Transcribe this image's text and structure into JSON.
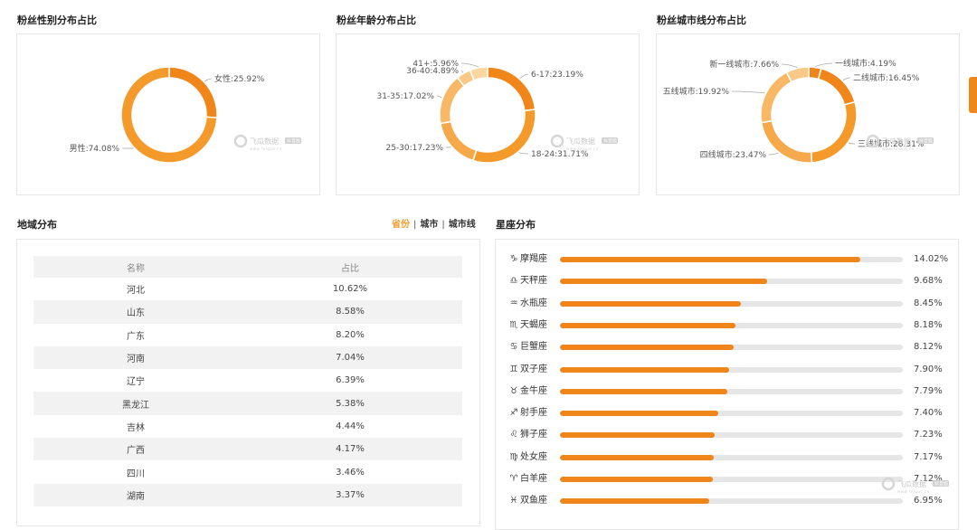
{
  "gender": {
    "title": "粉丝性别分布占比",
    "labels": [
      "女性:25.92%",
      "男性:74.08%"
    ]
  },
  "age": {
    "title": "粉丝年龄分布占比",
    "labels": [
      "6-17:23.19%",
      "18-24:31.71%",
      "25-30:17.23%",
      "31-35:17.02%",
      "36-40:4.89%",
      "41+:5.96%"
    ]
  },
  "city": {
    "title": "粉丝城市线分布占比",
    "labels": [
      "一线城市:4.19%",
      "二线城市:16.45%",
      "三线城市:28.31%",
      "四线城市:23.47%",
      "五线城市:19.92%",
      "新一线城市:7.66%"
    ]
  },
  "watermark": {
    "brand": "飞瓜数据",
    "badge": "抖音版",
    "url": "www.feigua.cn"
  },
  "region": {
    "title": "地域分布",
    "tabs": [
      "省份",
      "城市",
      "城市线"
    ],
    "active_tab": "省份",
    "tab_separator": "|",
    "columns": [
      "名称",
      "占比"
    ],
    "rows": [
      {
        "name": "河北",
        "pct": "10.62%"
      },
      {
        "name": "山东",
        "pct": "8.58%"
      },
      {
        "name": "广东",
        "pct": "8.20%"
      },
      {
        "name": "河南",
        "pct": "7.04%"
      },
      {
        "name": "辽宁",
        "pct": "6.39%"
      },
      {
        "name": "黑龙江",
        "pct": "5.38%"
      },
      {
        "name": "吉林",
        "pct": "4.44%"
      },
      {
        "name": "广西",
        "pct": "4.17%"
      },
      {
        "name": "四川",
        "pct": "3.46%"
      },
      {
        "name": "湖南",
        "pct": "3.37%"
      }
    ]
  },
  "zodiac": {
    "title": "星座分布",
    "icon_glyphs": [
      "♑",
      "♎",
      "♒",
      "♏",
      "♋",
      "♊",
      "♉",
      "♐",
      "♌",
      "♍",
      "♈",
      "♓"
    ],
    "names": [
      "摩羯座",
      "天秤座",
      "水瓶座",
      "天蝎座",
      "巨蟹座",
      "双子座",
      "金牛座",
      "射手座",
      "狮子座",
      "处女座",
      "白羊座",
      "双鱼座"
    ],
    "pct_labels": [
      "14.02%",
      "9.68%",
      "8.45%",
      "8.18%",
      "8.12%",
      "7.90%",
      "7.79%",
      "7.40%",
      "7.23%",
      "7.17%",
      "7.12%",
      "6.95%"
    ]
  },
  "colors": {
    "accent": "#f08519",
    "donut_palette": [
      "#f08519",
      "#f39a2b",
      "#f6a94a",
      "#f8b866",
      "#fbc987",
      "#fcd6a1"
    ],
    "track": "#e6e6e6"
  },
  "chart_data": [
    {
      "type": "pie",
      "title": "粉丝性别分布占比",
      "categories": [
        "女性",
        "男性"
      ],
      "values": [
        25.92,
        74.08
      ]
    },
    {
      "type": "pie",
      "title": "粉丝年龄分布占比",
      "categories": [
        "6-17",
        "18-24",
        "25-30",
        "31-35",
        "36-40",
        "41+"
      ],
      "values": [
        23.19,
        31.71,
        17.23,
        17.02,
        4.89,
        5.96
      ]
    },
    {
      "type": "pie",
      "title": "粉丝城市线分布占比",
      "categories": [
        "一线城市",
        "二线城市",
        "三线城市",
        "四线城市",
        "五线城市",
        "新一线城市"
      ],
      "values": [
        4.19,
        16.45,
        28.31,
        23.47,
        19.92,
        7.66
      ]
    },
    {
      "type": "bar",
      "title": "星座分布",
      "orientation": "horizontal",
      "categories": [
        "摩羯座",
        "天秤座",
        "水瓶座",
        "天蝎座",
        "巨蟹座",
        "双子座",
        "金牛座",
        "射手座",
        "狮子座",
        "处女座",
        "白羊座",
        "双鱼座"
      ],
      "values": [
        14.02,
        9.68,
        8.45,
        8.18,
        8.12,
        7.9,
        7.79,
        7.4,
        7.23,
        7.17,
        7.12,
        6.95
      ],
      "xlim": [
        0,
        16
      ]
    }
  ]
}
